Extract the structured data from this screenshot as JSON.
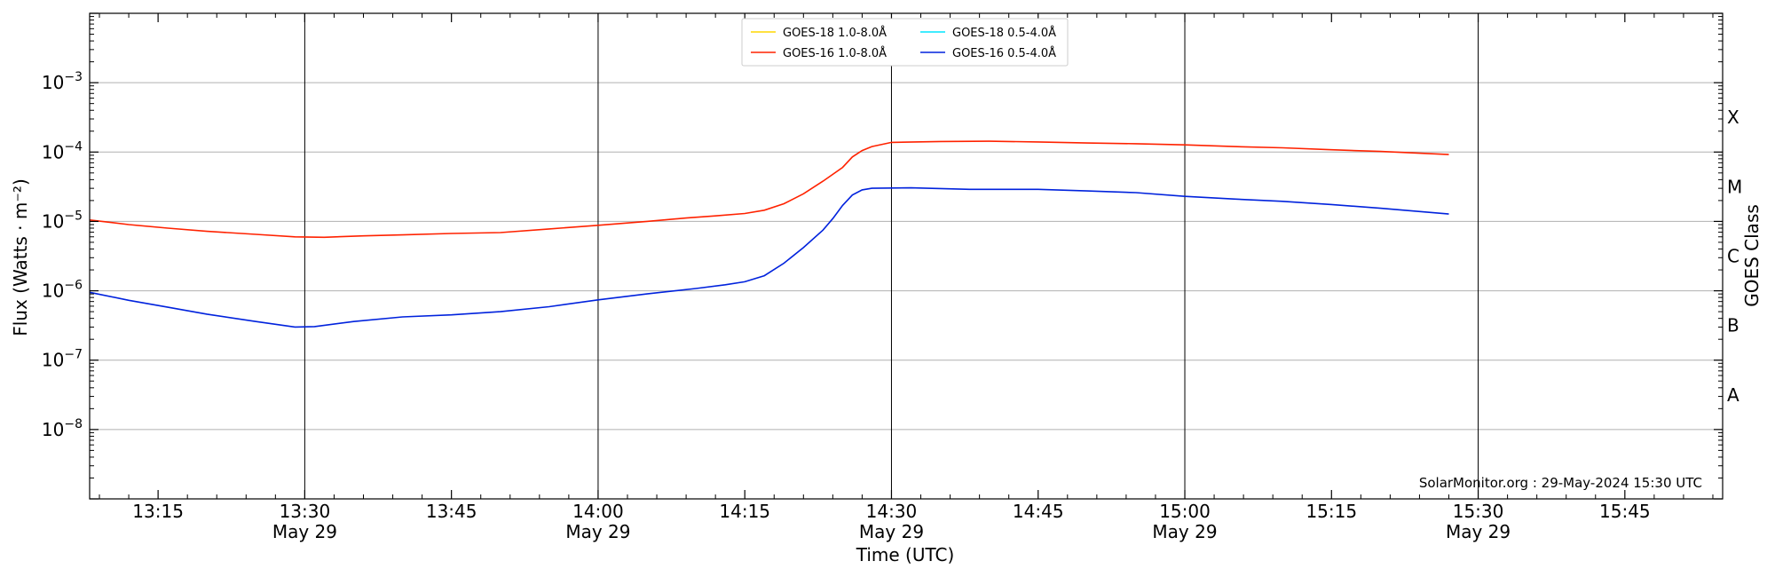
{
  "chart_data": {
    "type": "line",
    "xlabel": "Time (UTC)",
    "ylabel": "Flux (Watts · m⁻²)",
    "ylabel_right": "GOES Class",
    "y_scale": "log",
    "ylim": [
      1e-09,
      0.01
    ],
    "xlim": [
      "13:08",
      "15:55"
    ],
    "x_date": "May 29",
    "grid": true,
    "legend_position": "top-center",
    "credit": "SolarMonitor.org : 29-May-2024 15:30 UTC",
    "y_ticks": [
      {
        "value": 1e-08,
        "base": "10",
        "exp": "−8"
      },
      {
        "value": 1e-07,
        "base": "10",
        "exp": "−7"
      },
      {
        "value": 1e-06,
        "base": "10",
        "exp": "−6"
      },
      {
        "value": 1e-05,
        "base": "10",
        "exp": "−5"
      },
      {
        "value": 0.0001,
        "base": "10",
        "exp": "−4"
      },
      {
        "value": 0.001,
        "base": "10",
        "exp": "−3"
      }
    ],
    "x_ticks": [
      {
        "time": "13:15",
        "label": "13:15",
        "date": ""
      },
      {
        "time": "13:30",
        "label": "13:30",
        "date": "May 29"
      },
      {
        "time": "13:45",
        "label": "13:45",
        "date": ""
      },
      {
        "time": "14:00",
        "label": "14:00",
        "date": "May 29"
      },
      {
        "time": "14:15",
        "label": "14:15",
        "date": ""
      },
      {
        "time": "14:30",
        "label": "14:30",
        "date": "May 29"
      },
      {
        "time": "14:45",
        "label": "14:45",
        "date": ""
      },
      {
        "time": "15:00",
        "label": "15:00",
        "date": "May 29"
      },
      {
        "time": "15:15",
        "label": "15:15",
        "date": ""
      },
      {
        "time": "15:30",
        "label": "15:30",
        "date": "May 29"
      },
      {
        "time": "15:45",
        "label": "15:45",
        "date": ""
      }
    ],
    "vlines": [
      "13:30",
      "14:00",
      "14:30",
      "15:00",
      "15:30"
    ],
    "class_labels": [
      {
        "label": "A",
        "value": 3.16e-08
      },
      {
        "label": "B",
        "value": 3.16e-07
      },
      {
        "label": "C",
        "value": 3.16e-06
      },
      {
        "label": "M",
        "value": 3.16e-05
      },
      {
        "label": "X",
        "value": 0.000316
      }
    ],
    "series": [
      {
        "name": "GOES-18 1.0-8.0Å",
        "color": "#ffd700",
        "points": []
      },
      {
        "name": "GOES-18 0.5-4.0Å",
        "color": "#00e5ff",
        "points": []
      },
      {
        "name": "GOES-16 1.0-8.0Å",
        "color": "#ff2200",
        "points": [
          [
            "13:08",
            1.05e-05
          ],
          [
            "13:12",
            9e-06
          ],
          [
            "13:16",
            8e-06
          ],
          [
            "13:20",
            7.2e-06
          ],
          [
            "13:25",
            6.5e-06
          ],
          [
            "13:29",
            6e-06
          ],
          [
            "13:32",
            5.9e-06
          ],
          [
            "13:36",
            6.2e-06
          ],
          [
            "13:40",
            6.4e-06
          ],
          [
            "13:45",
            6.7e-06
          ],
          [
            "13:50",
            6.9e-06
          ],
          [
            "13:55",
            7.8e-06
          ],
          [
            "14:00",
            8.8e-06
          ],
          [
            "14:05",
            1e-05
          ],
          [
            "14:09",
            1.12e-05
          ],
          [
            "14:12",
            1.2e-05
          ],
          [
            "14:15",
            1.3e-05
          ],
          [
            "14:17",
            1.45e-05
          ],
          [
            "14:19",
            1.8e-05
          ],
          [
            "14:21",
            2.5e-05
          ],
          [
            "14:23",
            3.8e-05
          ],
          [
            "14:25",
            6e-05
          ],
          [
            "14:26",
            8.5e-05
          ],
          [
            "14:27",
            0.000105
          ],
          [
            "14:28",
            0.00012
          ],
          [
            "14:30",
            0.000138
          ],
          [
            "14:35",
            0.000142
          ],
          [
            "14:40",
            0.000143
          ],
          [
            "14:45",
            0.00014
          ],
          [
            "14:50",
            0.000135
          ],
          [
            "14:55",
            0.000132
          ],
          [
            "15:00",
            0.000127
          ],
          [
            "15:05",
            0.00012
          ],
          [
            "15:10",
            0.000115
          ],
          [
            "15:15",
            0.000108
          ],
          [
            "15:20",
            0.000102
          ],
          [
            "15:27",
            9.2e-05
          ]
        ]
      },
      {
        "name": "GOES-16 0.5-4.0Å",
        "color": "#0022dd",
        "points": [
          [
            "13:08",
            9.5e-07
          ],
          [
            "13:12",
            7.3e-07
          ],
          [
            "13:16",
            5.8e-07
          ],
          [
            "13:20",
            4.6e-07
          ],
          [
            "13:25",
            3.6e-07
          ],
          [
            "13:29",
            3e-07
          ],
          [
            "13:31",
            3.05e-07
          ],
          [
            "13:35",
            3.6e-07
          ],
          [
            "13:40",
            4.2e-07
          ],
          [
            "13:45",
            4.5e-07
          ],
          [
            "13:50",
            5e-07
          ],
          [
            "13:55",
            5.9e-07
          ],
          [
            "14:00",
            7.4e-07
          ],
          [
            "14:05",
            9e-07
          ],
          [
            "14:10",
            1.08e-06
          ],
          [
            "14:13",
            1.22e-06
          ],
          [
            "14:15",
            1.35e-06
          ],
          [
            "14:17",
            1.65e-06
          ],
          [
            "14:19",
            2.5e-06
          ],
          [
            "14:21",
            4.2e-06
          ],
          [
            "14:23",
            7.5e-06
          ],
          [
            "14:24",
            1.1e-05
          ],
          [
            "14:25",
            1.7e-05
          ],
          [
            "14:26",
            2.4e-05
          ],
          [
            "14:27",
            2.85e-05
          ],
          [
            "14:28",
            3e-05
          ],
          [
            "14:32",
            3.05e-05
          ],
          [
            "14:38",
            2.9e-05
          ],
          [
            "14:45",
            2.9e-05
          ],
          [
            "14:50",
            2.75e-05
          ],
          [
            "14:55",
            2.6e-05
          ],
          [
            "15:00",
            2.3e-05
          ],
          [
            "15:05",
            2.1e-05
          ],
          [
            "15:10",
            1.95e-05
          ],
          [
            "15:15",
            1.75e-05
          ],
          [
            "15:20",
            1.55e-05
          ],
          [
            "15:27",
            1.28e-05
          ]
        ]
      }
    ]
  }
}
